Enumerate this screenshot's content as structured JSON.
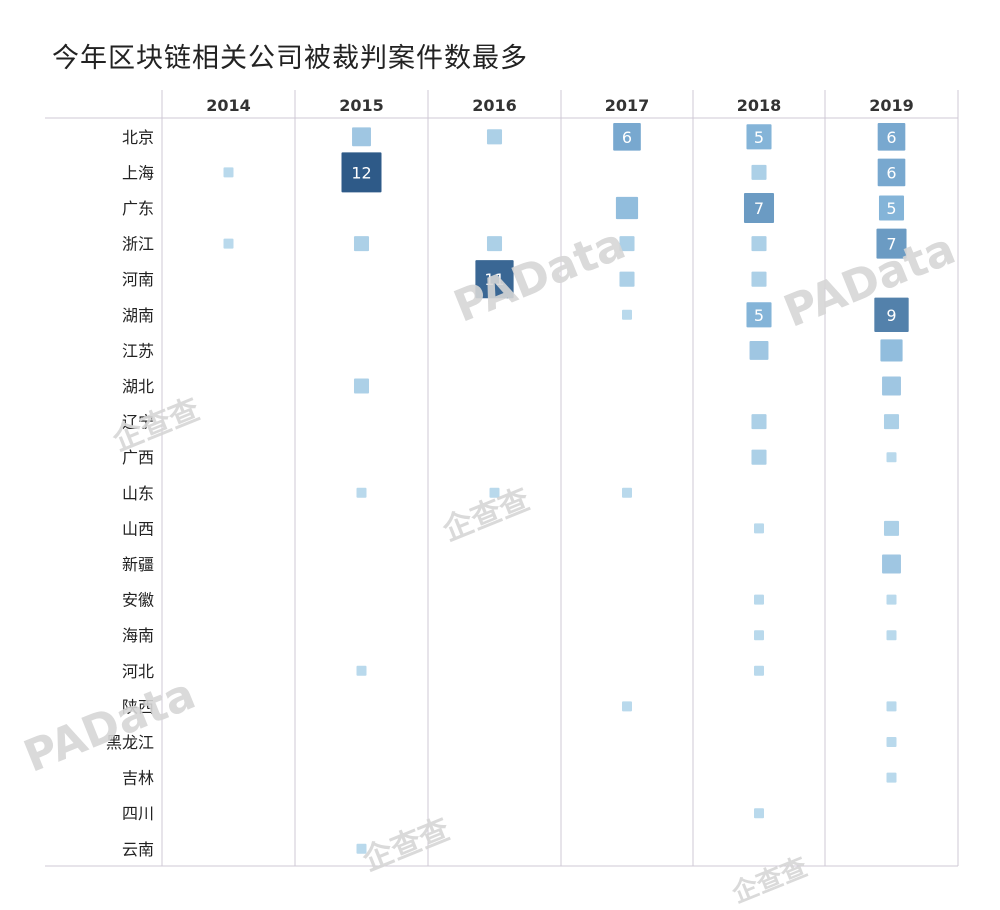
{
  "title": "今年区块链相关公司被裁判案件数最多",
  "watermarks": [
    "PAData",
    "PAData",
    "PAData",
    "企查查",
    "企查查",
    "企查查",
    "企查查"
  ],
  "chart_data": {
    "type": "heatmap",
    "title": "今年区块链相关公司被裁判案件数最多",
    "columns": [
      "2014",
      "2015",
      "2016",
      "2017",
      "2018",
      "2019"
    ],
    "rows": [
      "北京",
      "上海",
      "广东",
      "浙江",
      "河南",
      "湖南",
      "江苏",
      "湖北",
      "辽宁",
      "广西",
      "山东",
      "山西",
      "新疆",
      "安徽",
      "海南",
      "河北",
      "陕西",
      "黑龙江",
      "吉林",
      "四川",
      "云南"
    ],
    "encoding": "square size and color darkness encode case count; counts of 5 or more are printed",
    "cells": [
      {
        "row": "北京",
        "col": "2015",
        "value": 3
      },
      {
        "row": "北京",
        "col": "2016",
        "value": 2
      },
      {
        "row": "北京",
        "col": "2017",
        "value": 6,
        "label": "6"
      },
      {
        "row": "北京",
        "col": "2018",
        "value": 5,
        "label": "5"
      },
      {
        "row": "北京",
        "col": "2019",
        "value": 6,
        "label": "6"
      },
      {
        "row": "上海",
        "col": "2014",
        "value": 1
      },
      {
        "row": "上海",
        "col": "2015",
        "value": 12,
        "label": "12"
      },
      {
        "row": "上海",
        "col": "2018",
        "value": 2
      },
      {
        "row": "上海",
        "col": "2019",
        "value": 6,
        "label": "6"
      },
      {
        "row": "广东",
        "col": "2017",
        "value": 4
      },
      {
        "row": "广东",
        "col": "2018",
        "value": 7,
        "label": "7"
      },
      {
        "row": "广东",
        "col": "2019",
        "value": 5,
        "label": "5"
      },
      {
        "row": "浙江",
        "col": "2014",
        "value": 1
      },
      {
        "row": "浙江",
        "col": "2015",
        "value": 2
      },
      {
        "row": "浙江",
        "col": "2016",
        "value": 2
      },
      {
        "row": "浙江",
        "col": "2017",
        "value": 2
      },
      {
        "row": "浙江",
        "col": "2018",
        "value": 2
      },
      {
        "row": "浙江",
        "col": "2019",
        "value": 7,
        "label": "7"
      },
      {
        "row": "河南",
        "col": "2016",
        "value": 11,
        "label": "11"
      },
      {
        "row": "河南",
        "col": "2017",
        "value": 2
      },
      {
        "row": "河南",
        "col": "2018",
        "value": 2
      },
      {
        "row": "湖南",
        "col": "2017",
        "value": 1
      },
      {
        "row": "湖南",
        "col": "2018",
        "value": 5,
        "label": "5"
      },
      {
        "row": "湖南",
        "col": "2019",
        "value": 9,
        "label": "9"
      },
      {
        "row": "江苏",
        "col": "2018",
        "value": 3
      },
      {
        "row": "江苏",
        "col": "2019",
        "value": 4
      },
      {
        "row": "湖北",
        "col": "2015",
        "value": 2
      },
      {
        "row": "湖北",
        "col": "2019",
        "value": 3
      },
      {
        "row": "辽宁",
        "col": "2018",
        "value": 2
      },
      {
        "row": "辽宁",
        "col": "2019",
        "value": 2
      },
      {
        "row": "广西",
        "col": "2018",
        "value": 2
      },
      {
        "row": "广西",
        "col": "2019",
        "value": 1
      },
      {
        "row": "山东",
        "col": "2015",
        "value": 1
      },
      {
        "row": "山东",
        "col": "2016",
        "value": 1
      },
      {
        "row": "山东",
        "col": "2017",
        "value": 1
      },
      {
        "row": "山西",
        "col": "2018",
        "value": 1
      },
      {
        "row": "山西",
        "col": "2019",
        "value": 2
      },
      {
        "row": "新疆",
        "col": "2019",
        "value": 3
      },
      {
        "row": "安徽",
        "col": "2018",
        "value": 1
      },
      {
        "row": "安徽",
        "col": "2019",
        "value": 1
      },
      {
        "row": "海南",
        "col": "2018",
        "value": 1
      },
      {
        "row": "海南",
        "col": "2019",
        "value": 1
      },
      {
        "row": "河北",
        "col": "2015",
        "value": 1
      },
      {
        "row": "河北",
        "col": "2018",
        "value": 1
      },
      {
        "row": "陕西",
        "col": "2017",
        "value": 1
      },
      {
        "row": "陕西",
        "col": "2019",
        "value": 1
      },
      {
        "row": "黑龙江",
        "col": "2019",
        "value": 1
      },
      {
        "row": "吉林",
        "col": "2019",
        "value": 1
      },
      {
        "row": "四川",
        "col": "2018",
        "value": 1
      },
      {
        "row": "云南",
        "col": "2015",
        "value": 1
      }
    ],
    "colors": {
      "low": "#b9d9ec",
      "mid": "#7fb0d6",
      "high": "#2e5a88",
      "grid": "#cfc8d6",
      "row_line": "#e4e4e4"
    }
  }
}
